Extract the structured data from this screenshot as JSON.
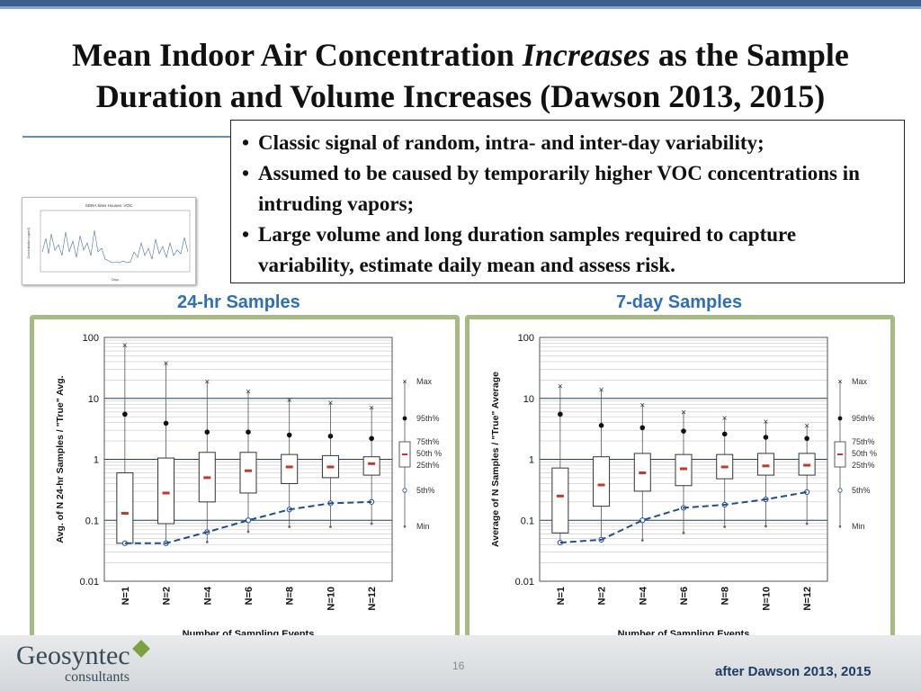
{
  "title": {
    "part1": "Mean Indoor Air Concentration ",
    "emph": "Increases",
    "part2": " as the Sample",
    "line2": "Duration and Volume Increases (Dawson 2013, 2015)"
  },
  "bullets": [
    "Classic signal of random, intra- and inter-day variability;",
    "Assumed to be caused by temporarily higher VOC concentrations in intruding vapors;",
    "Large volume and long duration samples required to capture variability, estimate daily mean and assess risk."
  ],
  "thumbnail": {
    "title": "SDRA Sites Houses: VOC",
    "xlabel": "Days",
    "ylabel": "Concentration (ug/m3)"
  },
  "colors": {
    "box_stroke": "#333333",
    "median": "#c0392b",
    "dashed_line": "#1f4e8c",
    "panel_border": "#a7ba82"
  },
  "legend": {
    "max": "Max",
    "p95": "95th%",
    "p75": "75th%",
    "p50": "50th %",
    "p25": "25th%",
    "p5": "5th%",
    "min": "Min"
  },
  "footer": {
    "logo": "Geosyntec",
    "logo_sub": "consultants",
    "page": "16",
    "credit": "after Dawson 2013, 2015"
  },
  "chart_data": [
    {
      "type": "box",
      "title": "24-hr Samples",
      "ylabel": "Avg. of N 24-hr Samples / \"True\" Avg.",
      "xlabel": "Number of Sampling Events",
      "yscale": "log",
      "ylim": [
        0.01,
        100
      ],
      "yticks": [
        "100",
        "10",
        "1",
        "0.1",
        "0.01"
      ],
      "categories": [
        "N=1",
        "N=2",
        "N=4",
        "N=6",
        "N=8",
        "N=10",
        "N=12"
      ],
      "series": [
        {
          "name": "Max",
          "values": [
            75,
            38,
            19,
            13,
            9.5,
            8.5,
            7
          ]
        },
        {
          "name": "95th%",
          "values": [
            5.5,
            3.9,
            2.8,
            2.8,
            2.5,
            2.4,
            2.2
          ]
        },
        {
          "name": "75th%",
          "values": [
            0.6,
            1.05,
            1.3,
            1.3,
            1.2,
            1.15,
            1.1
          ]
        },
        {
          "name": "Median",
          "values": [
            0.13,
            0.28,
            0.5,
            0.65,
            0.75,
            0.75,
            0.85
          ]
        },
        {
          "name": "25th%",
          "values": [
            0.042,
            0.088,
            0.2,
            0.28,
            0.4,
            0.5,
            0.55
          ]
        },
        {
          "name": "5th%",
          "values": [
            0.042,
            0.042,
            0.064,
            0.1,
            0.15,
            0.19,
            0.2
          ]
        },
        {
          "name": "Min",
          "values": [
            0.042,
            0.042,
            0.044,
            0.065,
            0.078,
            0.078,
            0.088
          ]
        }
      ]
    },
    {
      "type": "box",
      "title": "7-day Samples",
      "ylabel": "Average of N Samples / \"True\" Average",
      "xlabel": "Number of Sampling Events",
      "yscale": "log",
      "ylim": [
        0.01,
        100
      ],
      "yticks": [
        "100",
        "10",
        "1",
        "0.1",
        "0.01"
      ],
      "categories": [
        "N=1",
        "N=2",
        "N=4",
        "N=6",
        "N=8",
        "N=10",
        "N=12"
      ],
      "series": [
        {
          "name": "Max",
          "values": [
            16,
            14,
            7.8,
            6,
            4.8,
            4.2,
            3.6
          ]
        },
        {
          "name": "95th%",
          "values": [
            5.5,
            3.6,
            3.3,
            2.9,
            2.6,
            2.3,
            2.2
          ]
        },
        {
          "name": "75th%",
          "values": [
            0.72,
            1.1,
            1.25,
            1.2,
            1.2,
            1.25,
            1.25
          ]
        },
        {
          "name": "Median",
          "values": [
            0.25,
            0.38,
            0.6,
            0.7,
            0.75,
            0.78,
            0.8
          ]
        },
        {
          "name": "25th%",
          "values": [
            0.062,
            0.17,
            0.3,
            0.37,
            0.48,
            0.55,
            0.55
          ]
        },
        {
          "name": "5th%",
          "values": [
            0.043,
            0.048,
            0.1,
            0.16,
            0.18,
            0.22,
            0.29
          ]
        },
        {
          "name": "Min",
          "values": [
            0.042,
            0.045,
            0.047,
            0.062,
            0.078,
            0.08,
            0.088
          ]
        }
      ]
    }
  ]
}
